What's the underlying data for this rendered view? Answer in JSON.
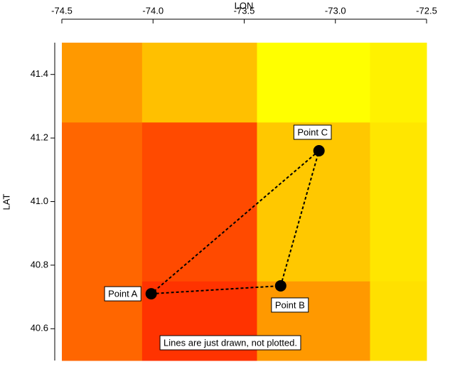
{
  "chart_data": {
    "type": "heatmap-points",
    "xlabel": "LON",
    "ylabel": "LAT",
    "xlim": [
      -74.5,
      -72.5
    ],
    "ylim": [
      40.5,
      41.5
    ],
    "xticks": [
      -74.5,
      {
        "value": -74,
        "label": "-74.0"
      },
      -73.5,
      {
        "value": -73,
        "label": "-73.0"
      },
      -72.5
    ],
    "yticks": [
      40.6,
      40.8,
      {
        "value": 41,
        "label": "41.0"
      },
      41.2,
      41.4
    ],
    "cell_x_edges": [
      -74.5,
      -74.06,
      -73.43,
      -72.81,
      -72.5
    ],
    "cell_y_edges": [
      40.5,
      40.75,
      41.25,
      41.5
    ],
    "cell_colors": [
      [
        "#ff6600",
        "#ff3300",
        "#ff9900",
        "#ffe000"
      ],
      [
        "#ff6600",
        "#ff4a00",
        "#ffc800",
        "#ffe600"
      ],
      [
        "#ff9900",
        "#ffc000",
        "#ffff00",
        "#fff200"
      ]
    ],
    "points": {
      "names": [
        "Point A",
        "Point B",
        "Point C"
      ],
      "x": [
        -74.01,
        -73.3,
        -73.09
      ],
      "y": [
        40.71,
        40.735,
        41.16
      ],
      "color": "#000000"
    },
    "annotation": "Lines are just drawn, not plotted."
  }
}
